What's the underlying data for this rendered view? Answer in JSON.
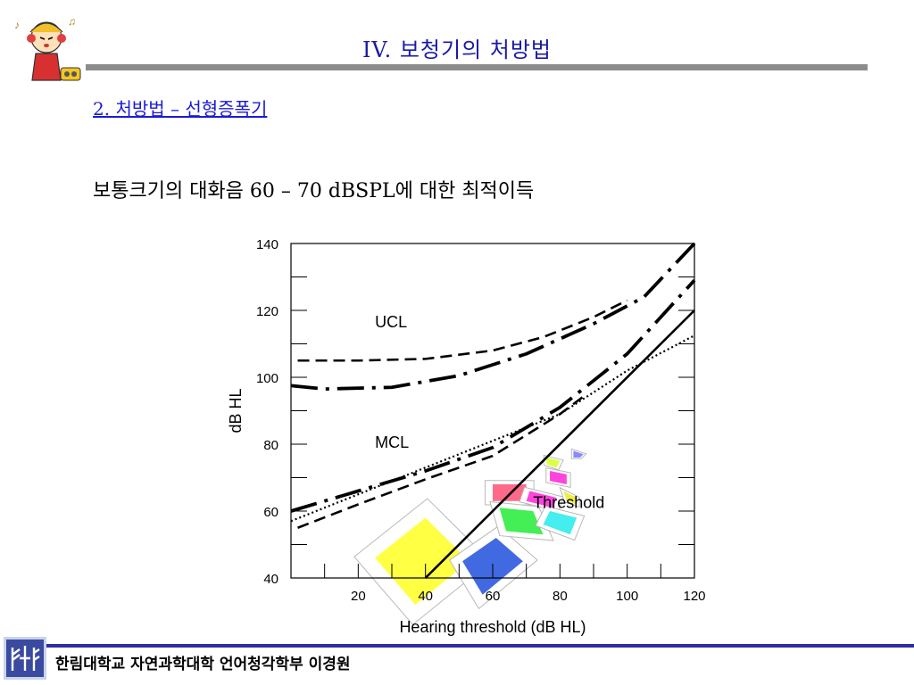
{
  "header": {
    "title": "IV. 보청기의 처방법",
    "subtitle": "2. 처방법 – 선형증폭기"
  },
  "content": {
    "heading": "보통크기의 대화음 60 – 70 dBSPL에 대한 최적이득"
  },
  "footer": {
    "text": "한림대학교 자연과학대학 언어청각학부 이경원"
  },
  "chart_data": {
    "type": "line",
    "xlabel": "Hearing threshold (dB HL)",
    "ylabel": "dB HL",
    "xlim": [
      0,
      120
    ],
    "ylim": [
      40,
      140
    ],
    "xticks": [
      20,
      40,
      60,
      80,
      100,
      120
    ],
    "yticks": [
      40,
      60,
      80,
      100,
      120,
      140
    ],
    "annotations": [
      "UCL",
      "MCL",
      "Threshold"
    ],
    "series": [
      {
        "name": "UCL",
        "style": "dashed",
        "x": [
          2,
          20,
          40,
          60,
          75,
          90,
          100
        ],
        "y": [
          105,
          105,
          105.5,
          108,
          112,
          118,
          123
        ]
      },
      {
        "name": "",
        "style": "dash-dot",
        "x": [
          0,
          10,
          30,
          50,
          70,
          90,
          105,
          120
        ],
        "y": [
          97.5,
          96.5,
          97,
          100.5,
          107,
          116,
          124,
          140
        ]
      },
      {
        "name": "MCL",
        "style": "dashed",
        "x": [
          2,
          20,
          40,
          60,
          80,
          88
        ],
        "y": [
          55,
          62,
          69.5,
          76.5,
          89,
          95
        ]
      },
      {
        "name": "",
        "style": "dash-dot",
        "x": [
          0,
          20,
          40,
          60,
          80,
          100,
          120
        ],
        "y": [
          60,
          66,
          72,
          79,
          91,
          107,
          129
        ]
      },
      {
        "name": "",
        "style": "dotted",
        "x": [
          0,
          20,
          40,
          60,
          80,
          100,
          120
        ],
        "y": [
          57,
          65,
          73,
          81,
          89,
          102,
          112.5
        ]
      },
      {
        "name": "Threshold",
        "style": "solid",
        "x": [
          40,
          120
        ],
        "y": [
          40,
          120
        ]
      }
    ],
    "speech_regions": [
      {
        "x": [
          25,
          40,
          53,
          37
        ],
        "y": [
          46,
          58,
          45,
          32
        ],
        "color": "#ffff44"
      },
      {
        "x": [
          51,
          61,
          69,
          57
        ],
        "y": [
          45,
          52,
          45,
          35
        ],
        "color": "#4169e1"
      },
      {
        "x": [
          60,
          70,
          70,
          60
        ],
        "y": [
          68,
          68,
          63,
          63
        ],
        "color": "#ff6a8a"
      },
      {
        "x": [
          62,
          72,
          75,
          64
        ],
        "y": [
          61,
          60,
          53,
          54
        ],
        "color": "#44ee55"
      },
      {
        "x": [
          71,
          79,
          78,
          70
        ],
        "y": [
          66,
          64,
          61,
          63
        ],
        "color": "#ff44dd"
      },
      {
        "x": [
          77,
          85,
          83,
          75
        ],
        "y": [
          60,
          58,
          53,
          56
        ],
        "color": "#44eeee"
      },
      {
        "x": [
          77,
          82,
          82,
          77
        ],
        "y": [
          72,
          71,
          68,
          69
        ],
        "color": "#ff44dd"
      },
      {
        "x": [
          81,
          85,
          85,
          82
        ],
        "y": [
          66,
          64,
          62,
          63
        ],
        "color": "#eeee44"
      },
      {
        "x": [
          76,
          80,
          79,
          76
        ],
        "y": [
          76,
          75,
          73,
          74
        ],
        "color": "#ddff44"
      },
      {
        "x": [
          84,
          87,
          86,
          84
        ],
        "y": [
          78,
          77,
          76,
          76
        ],
        "color": "#8888ff"
      }
    ],
    "colors": {
      "title": "#1a1aa6",
      "subtitle": "#1a1ad6",
      "rule": "#8c8c8c",
      "footer_rule": "#2e2ea0"
    }
  }
}
